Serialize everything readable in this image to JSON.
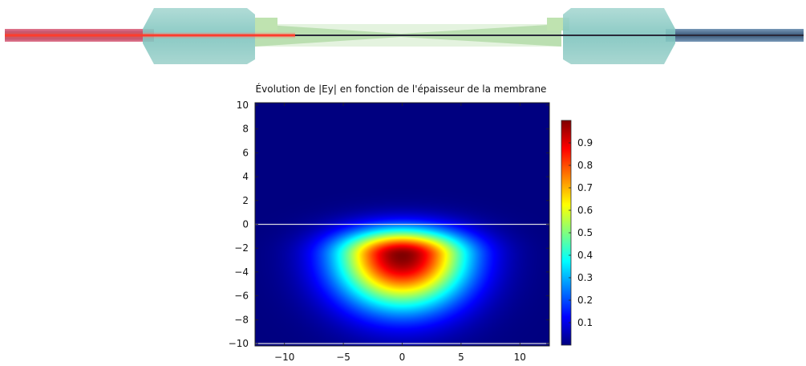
{
  "chart_data": {
    "type": "heatmap",
    "title": "Évolution de |Ey| en fonction de l'épaisseur de la membrane",
    "xlabel": "",
    "ylabel": "",
    "xlim": [
      -12.5,
      12.5
    ],
    "ylim": [
      -10.2,
      10.2
    ],
    "x_ticks": [
      -10,
      -5,
      0,
      5,
      10
    ],
    "x_tick_labels": [
      "−10",
      "−5",
      "0",
      "5",
      "10"
    ],
    "y_ticks": [
      10,
      8,
      6,
      4,
      2,
      0,
      -2,
      -4,
      -6,
      -8,
      -10
    ],
    "y_tick_labels": [
      "10",
      "8",
      "6",
      "4",
      "2",
      "0",
      "−2",
      "−4",
      "−6",
      "−8",
      "−10"
    ],
    "colorbar": {
      "range": [
        0,
        1
      ],
      "ticks": [
        0.1,
        0.2,
        0.3,
        0.4,
        0.5,
        0.6,
        0.7,
        0.8,
        0.9
      ],
      "tick_labels": [
        "0.1",
        "0.2",
        "0.3",
        "0.4",
        "0.5",
        "0.6",
        "0.7",
        "0.8",
        "0.9"
      ],
      "colormap": "jet"
    },
    "field": {
      "peak_value": 1.0,
      "peak_x": 0,
      "peak_y": -2.6,
      "half_width_x": 6.3,
      "extent_above_peak_y": 2.5,
      "extent_below_peak_y": 5.0,
      "background_value": 0.0
    },
    "interfaces_y": [
      0,
      -10
    ],
    "interface_color": "#d8d8e0",
    "grid": false
  },
  "fiber_illustration": {
    "colors": {
      "left_fiber": "#c03850",
      "right_fiber": "#3a5878",
      "ferrule": "#7ec4be",
      "taper": "#bfe3b0",
      "laser": "#ff2010"
    }
  }
}
